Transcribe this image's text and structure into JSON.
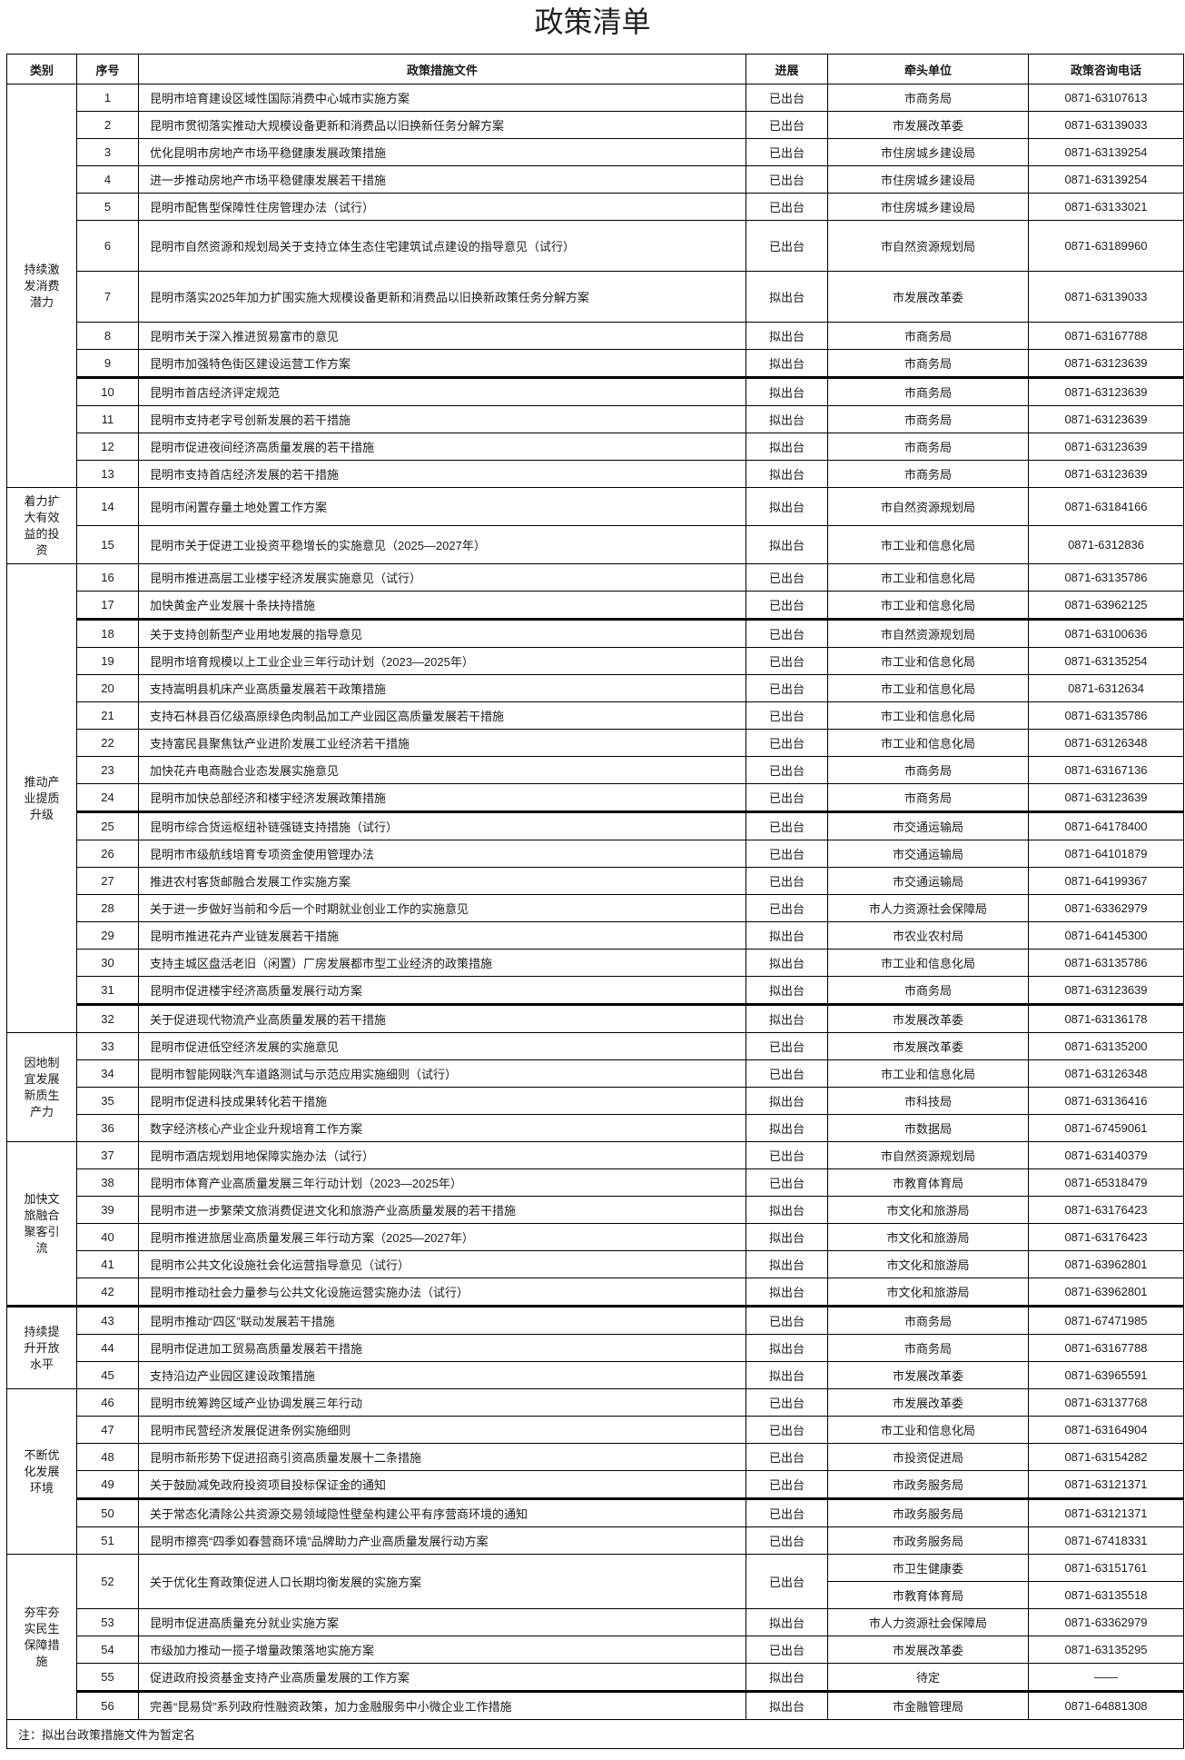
{
  "title": "政策清单",
  "headers": [
    "类别",
    "序号",
    "政策措施文件",
    "进展",
    "牵头单位",
    "政策咨询电话"
  ],
  "categories": [
    {
      "name": "持续激发消费潜力",
      "items": [
        {
          "no": "1",
          "title": "昆明市培育建设区域性国际消费中心城市实施方案",
          "status": "已出台",
          "units": [
            {
              "unit": "市商务局",
              "phone": "0871-63107613"
            }
          ]
        },
        {
          "no": "2",
          "title": "昆明市贯彻落实推动大规模设备更新和消费品以旧换新任务分解方案",
          "status": "已出台",
          "units": [
            {
              "unit": "市发展改革委",
              "phone": "0871-63139033"
            }
          ]
        },
        {
          "no": "3",
          "title": "优化昆明市房地产市场平稳健康发展政策措施",
          "status": "已出台",
          "units": [
            {
              "unit": "市住房城乡建设局",
              "phone": "0871-63139254"
            }
          ]
        },
        {
          "no": "4",
          "title": "进一步推动房地产市场平稳健康发展若干措施",
          "status": "已出台",
          "units": [
            {
              "unit": "市住房城乡建设局",
              "phone": "0871-63139254"
            }
          ]
        },
        {
          "no": "5",
          "title": "昆明市配售型保障性住房管理办法（试行）",
          "status": "已出台",
          "units": [
            {
              "unit": "市住房城乡建设局",
              "phone": "0871-63133021"
            }
          ]
        },
        {
          "no": "6",
          "title": "昆明市自然资源和规划局关于支持立体生态住宅建筑试点建设的指导意见（试行）",
          "status": "已出台",
          "units": [
            {
              "unit": "市自然资源规划局",
              "phone": "0871-63189960"
            }
          ]
        },
        {
          "no": "7",
          "title": "昆明市落实2025年加力扩围实施大规模设备更新和消费品以旧换新政策任务分解方案",
          "status": "拟出台",
          "units": [
            {
              "unit": "市发展改革委",
              "phone": "0871-63139033"
            }
          ]
        },
        {
          "no": "8",
          "title": "昆明市关于深入推进贸易富市的意见",
          "status": "拟出台",
          "units": [
            {
              "unit": "市商务局",
              "phone": "0871-63167788"
            }
          ]
        },
        {
          "no": "9",
          "title": "昆明市加强特色街区建设运营工作方案",
          "status": "拟出台",
          "units": [
            {
              "unit": "市商务局",
              "phone": "0871-63123639"
            }
          ]
        },
        {
          "no": "10",
          "title": "昆明市首店经济评定规范",
          "status": "拟出台",
          "units": [
            {
              "unit": "市商务局",
              "phone": "0871-63123639"
            }
          ]
        },
        {
          "no": "11",
          "title": "昆明市支持老字号创新发展的若干措施",
          "status": "拟出台",
          "units": [
            {
              "unit": "市商务局",
              "phone": "0871-63123639"
            }
          ]
        },
        {
          "no": "12",
          "title": "昆明市促进夜间经济高质量发展的若干措施",
          "status": "拟出台",
          "units": [
            {
              "unit": "市商务局",
              "phone": "0871-63123639"
            }
          ]
        },
        {
          "no": "13",
          "title": "昆明市支持首店经济发展的若干措施",
          "status": "拟出台",
          "units": [
            {
              "unit": "市商务局",
              "phone": "0871-63123639"
            }
          ]
        }
      ]
    },
    {
      "name": "着力扩大有效益的投资",
      "items": [
        {
          "no": "14",
          "title": "昆明市闲置存量土地处置工作方案",
          "status": "拟出台",
          "units": [
            {
              "unit": "市自然资源规划局",
              "phone": "0871-63184166"
            }
          ]
        },
        {
          "no": "15",
          "title": "昆明市关于促进工业投资平稳增长的实施意见（2025—2027年）",
          "status": "拟出台",
          "units": [
            {
              "unit": "市工业和信息化局",
              "phone": "0871-6312836"
            }
          ]
        }
      ]
    },
    {
      "name": "推动产业提质升级",
      "items": [
        {
          "no": "16",
          "title": "昆明市推进高层工业楼宇经济发展实施意见（试行）",
          "status": "已出台",
          "units": [
            {
              "unit": "市工业和信息化局",
              "phone": "0871-63135786"
            }
          ]
        },
        {
          "no": "17",
          "title": "加快黄金产业发展十条扶持措施",
          "status": "已出台",
          "units": [
            {
              "unit": "市工业和信息化局",
              "phone": "0871-63962125"
            }
          ]
        },
        {
          "no": "18",
          "title": "关于支持创新型产业用地发展的指导意见",
          "status": "已出台",
          "units": [
            {
              "unit": "市自然资源规划局",
              "phone": "0871-63100636"
            }
          ]
        },
        {
          "no": "19",
          "title": "昆明市培育规模以上工业企业三年行动计划（2023—2025年）",
          "status": "已出台",
          "units": [
            {
              "unit": "市工业和信息化局",
              "phone": "0871-63135254"
            }
          ]
        },
        {
          "no": "20",
          "title": "支持嵩明县机床产业高质量发展若干政策措施",
          "status": "已出台",
          "units": [
            {
              "unit": "市工业和信息化局",
              "phone": "0871-6312634"
            }
          ]
        },
        {
          "no": "21",
          "title": "支持石林县百亿级高原绿色肉制品加工产业园区高质量发展若干措施",
          "status": "已出台",
          "units": [
            {
              "unit": "市工业和信息化局",
              "phone": "0871-63135786"
            }
          ]
        },
        {
          "no": "22",
          "title": "支持富民县聚焦钛产业进阶发展工业经济若干措施",
          "status": "已出台",
          "units": [
            {
              "unit": "市工业和信息化局",
              "phone": "0871-63126348"
            }
          ]
        },
        {
          "no": "23",
          "title": "加快花卉电商融合业态发展实施意见",
          "status": "已出台",
          "units": [
            {
              "unit": "市商务局",
              "phone": "0871-63167136"
            }
          ]
        },
        {
          "no": "24",
          "title": "昆明市加快总部经济和楼宇经济发展政策措施",
          "status": "已出台",
          "units": [
            {
              "unit": "市商务局",
              "phone": "0871-63123639"
            }
          ]
        },
        {
          "no": "25",
          "title": "昆明市综合货运枢纽补链强链支持措施（试行）",
          "status": "已出台",
          "units": [
            {
              "unit": "市交通运输局",
              "phone": "0871-64178400"
            }
          ]
        },
        {
          "no": "26",
          "title": "昆明市市级航线培育专项资金使用管理办法",
          "status": "已出台",
          "units": [
            {
              "unit": "市交通运输局",
              "phone": "0871-64101879"
            }
          ]
        },
        {
          "no": "27",
          "title": "推进农村客货邮融合发展工作实施方案",
          "status": "已出台",
          "units": [
            {
              "unit": "市交通运输局",
              "phone": "0871-64199367"
            }
          ]
        },
        {
          "no": "28",
          "title": "关于进一步做好当前和今后一个时期就业创业工作的实施意见",
          "status": "已出台",
          "units": [
            {
              "unit": "市人力资源社会保障局",
              "phone": "0871-63362979"
            }
          ]
        },
        {
          "no": "29",
          "title": "昆明市推进花卉产业链发展若干措施",
          "status": "拟出台",
          "units": [
            {
              "unit": "市农业农村局",
              "phone": "0871-64145300"
            }
          ]
        },
        {
          "no": "30",
          "title": "支持主城区盘活老旧（闲置）厂房发展都市型工业经济的政策措施",
          "status": "拟出台",
          "units": [
            {
              "unit": "市工业和信息化局",
              "phone": "0871-63135786"
            }
          ]
        },
        {
          "no": "31",
          "title": "昆明市促进楼宇经济高质量发展行动方案",
          "status": "拟出台",
          "units": [
            {
              "unit": "市商务局",
              "phone": "0871-63123639"
            }
          ]
        },
        {
          "no": "32",
          "title": "关于促进现代物流产业高质量发展的若干措施",
          "status": "拟出台",
          "units": [
            {
              "unit": "市发展改革委",
              "phone": "0871-63136178"
            }
          ]
        }
      ]
    },
    {
      "name": "因地制宜发展新质生产力",
      "items": [
        {
          "no": "33",
          "title": "昆明市促进低空经济发展的实施意见",
          "status": "已出台",
          "units": [
            {
              "unit": "市发展改革委",
              "phone": "0871-63135200"
            }
          ]
        },
        {
          "no": "34",
          "title": "昆明市智能网联汽车道路测试与示范应用实施细则（试行）",
          "status": "已出台",
          "units": [
            {
              "unit": "市工业和信息化局",
              "phone": "0871-63126348"
            }
          ]
        },
        {
          "no": "35",
          "title": "昆明市促进科技成果转化若干措施",
          "status": "拟出台",
          "units": [
            {
              "unit": "市科技局",
              "phone": "0871-63136416"
            }
          ]
        },
        {
          "no": "36",
          "title": "数字经济核心产业企业升规培育工作方案",
          "status": "拟出台",
          "units": [
            {
              "unit": "市数据局",
              "phone": "0871-67459061"
            }
          ]
        }
      ]
    },
    {
      "name": "加快文旅融合聚客引流",
      "items": [
        {
          "no": "37",
          "title": "昆明市酒店规划用地保障实施办法（试行）",
          "status": "已出台",
          "units": [
            {
              "unit": "市自然资源规划局",
              "phone": "0871-63140379"
            }
          ]
        },
        {
          "no": "38",
          "title": "昆明市体育产业高质量发展三年行动计划（2023—2025年）",
          "status": "已出台",
          "units": [
            {
              "unit": "市教育体育局",
              "phone": "0871-65318479"
            }
          ]
        },
        {
          "no": "39",
          "title": "昆明市进一步繁荣文旅消费促进文化和旅游产业高质量发展的若干措施",
          "status": "拟出台",
          "units": [
            {
              "unit": "市文化和旅游局",
              "phone": "0871-63176423"
            }
          ]
        },
        {
          "no": "40",
          "title": "昆明市推进旅居业高质量发展三年行动方案（2025—2027年）",
          "status": "拟出台",
          "units": [
            {
              "unit": "市文化和旅游局",
              "phone": "0871-63176423"
            }
          ]
        },
        {
          "no": "41",
          "title": "昆明市公共文化设施社会化运营指导意见（试行）",
          "status": "拟出台",
          "units": [
            {
              "unit": "市文化和旅游局",
              "phone": "0871-63962801"
            }
          ]
        },
        {
          "no": "42",
          "title": "昆明市推动社会力量参与公共文化设施运营实施办法（试行）",
          "status": "拟出台",
          "units": [
            {
              "unit": "市文化和旅游局",
              "phone": "0871-63962801"
            }
          ]
        }
      ]
    },
    {
      "name": "持续提升开放水平",
      "items": [
        {
          "no": "43",
          "title": "昆明市推动“四区”联动发展若干措施",
          "status": "已出台",
          "units": [
            {
              "unit": "市商务局",
              "phone": "0871-67471985"
            }
          ]
        },
        {
          "no": "44",
          "title": "昆明市促进加工贸易高质量发展若干措施",
          "status": "拟出台",
          "units": [
            {
              "unit": "市商务局",
              "phone": "0871-63167788"
            }
          ]
        },
        {
          "no": "45",
          "title": "支持沿边产业园区建设政策措施",
          "status": "拟出台",
          "units": [
            {
              "unit": "市发展改革委",
              "phone": "0871-63965591"
            }
          ]
        }
      ]
    },
    {
      "name": "不断优化发展环境",
      "items": [
        {
          "no": "46",
          "title": "昆明市统筹跨区域产业协调发展三年行动",
          "status": "已出台",
          "units": [
            {
              "unit": "市发展改革委",
              "phone": "0871-63137768"
            }
          ]
        },
        {
          "no": "47",
          "title": "昆明市民营经济发展促进条例实施细则",
          "status": "已出台",
          "units": [
            {
              "unit": "市工业和信息化局",
              "phone": "0871-63164904"
            }
          ]
        },
        {
          "no": "48",
          "title": "昆明市新形势下促进招商引资高质量发展十二条措施",
          "status": "已出台",
          "units": [
            {
              "unit": "市投资促进局",
              "phone": "0871-63154282"
            }
          ]
        },
        {
          "no": "49",
          "title": "关于鼓励减免政府投资项目投标保证金的通知",
          "status": "已出台",
          "units": [
            {
              "unit": "市政务服务局",
              "phone": "0871-63121371"
            }
          ]
        },
        {
          "no": "50",
          "title": "关于常态化清除公共资源交易领域隐性壁垒构建公平有序营商环境的通知",
          "status": "已出台",
          "units": [
            {
              "unit": "市政务服务局",
              "phone": "0871-63121371"
            }
          ]
        },
        {
          "no": "51",
          "title": "昆明市擦亮“四季如春营商环境”品牌助力产业高质量发展行动方案",
          "status": "已出台",
          "units": [
            {
              "unit": "市政务服务局",
              "phone": "0871-67418331"
            }
          ]
        }
      ]
    },
    {
      "name": "夯牢夯实民生保障措施",
      "items": [
        {
          "no": "52",
          "title": "关于优化生育政策促进人口长期均衡发展的实施方案",
          "status": "已出台",
          "units": [
            {
              "unit": "市卫生健康委",
              "phone": "0871-63151761"
            },
            {
              "unit": "市教育体育局",
              "phone": "0871-63135518"
            }
          ]
        },
        {
          "no": "53",
          "title": "昆明市促进高质量充分就业实施方案",
          "status": "拟出台",
          "units": [
            {
              "unit": "市人力资源社会保障局",
              "phone": "0871-63362979"
            }
          ]
        },
        {
          "no": "54",
          "title": "市级加力推动一揽子增量政策落地实施方案",
          "status": "已出台",
          "units": [
            {
              "unit": "市发展改革委",
              "phone": "0871-63135295"
            }
          ]
        },
        {
          "no": "55",
          "title": "促进政府投资基金支持产业高质量发展的工作方案",
          "status": "拟出台",
          "units": [
            {
              "unit": "待定",
              "phone": "——"
            }
          ]
        },
        {
          "no": "56",
          "title": "完善“昆易贷”系列政府性融资政策，加力金融服务中小微企业工作措施",
          "status": "拟出台",
          "units": [
            {
              "unit": "市金融管理局",
              "phone": "0871-64881308"
            }
          ]
        }
      ]
    }
  ],
  "note": "注：拟出台政策措施文件为暂定名"
}
